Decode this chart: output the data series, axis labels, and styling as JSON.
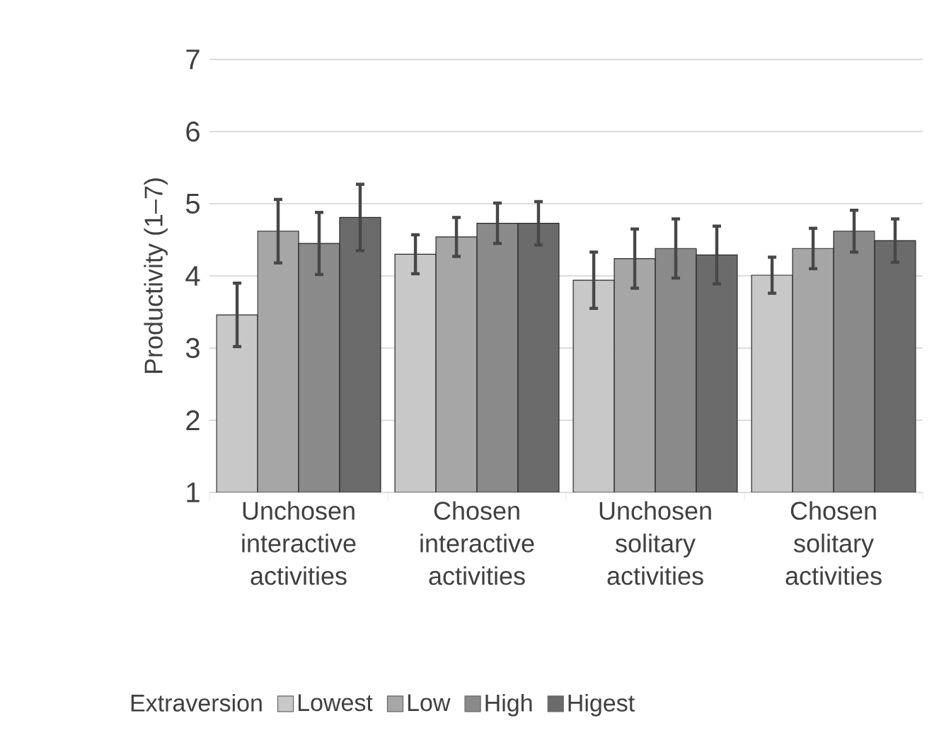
{
  "chart_data": {
    "type": "bar",
    "ylabel": "Productivity (1–7)",
    "legend_title": "Extraversion",
    "categories": [
      "Unchosen interactive activities",
      "Chosen interactive activities",
      "Unchosen solitary activities",
      "Chosen solitary activities"
    ],
    "series": [
      {
        "name": "Lowest",
        "color": "#c8c8c8",
        "values": [
          3.46,
          4.3,
          3.94,
          4.01
        ],
        "errors": [
          0.44,
          0.27,
          0.39,
          0.25
        ]
      },
      {
        "name": "Low",
        "color": "#a6a6a6",
        "values": [
          4.62,
          4.54,
          4.24,
          4.38
        ],
        "errors": [
          0.44,
          0.27,
          0.41,
          0.28
        ]
      },
      {
        "name": "High",
        "color": "#8a8a8a",
        "values": [
          4.45,
          4.73,
          4.38,
          4.62
        ],
        "errors": [
          0.43,
          0.28,
          0.41,
          0.29
        ]
      },
      {
        "name": "Higest",
        "color": "#6b6b6b",
        "values": [
          4.81,
          4.73,
          4.29,
          4.49
        ],
        "errors": [
          0.46,
          0.3,
          0.4,
          0.3
        ]
      }
    ],
    "ylim": [
      1,
      7
    ],
    "yticks": [
      1,
      2,
      3,
      4,
      5,
      6,
      7
    ],
    "grid": "y",
    "legend": "bottom"
  }
}
